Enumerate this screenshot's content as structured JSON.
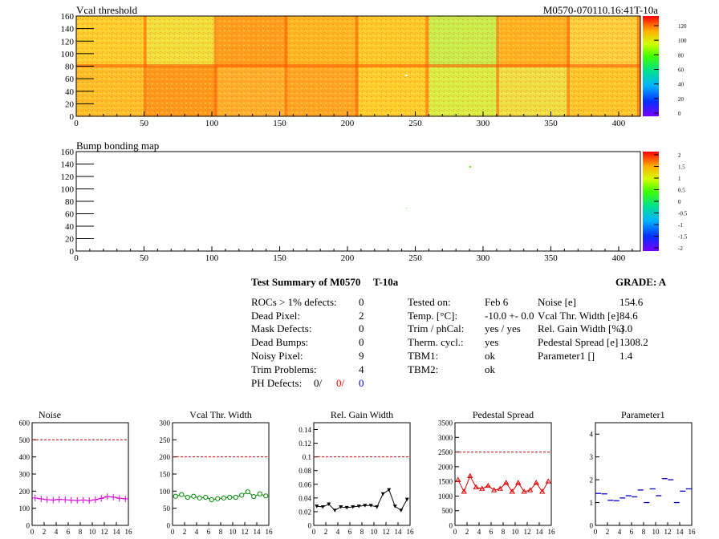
{
  "header": {
    "map1_title": "Vcal threshold",
    "module_id": "M0570-070110.16:41T-10a",
    "map2_title": "Bump bonding map"
  },
  "map_axes": {
    "x_ticks": [
      "0",
      "50",
      "100",
      "150",
      "200",
      "250",
      "300",
      "350",
      "400"
    ],
    "y_ticks": [
      "0",
      "20",
      "40",
      "60",
      "80",
      "100",
      "120",
      "140",
      "160"
    ],
    "palette1_ticks": [
      "120",
      "100",
      "80",
      "60",
      "40",
      "20",
      "0"
    ],
    "palette2_ticks": [
      "2",
      "1.5",
      "1",
      "0.5",
      "0",
      "-0.5",
      "-1",
      "-1.5",
      "-2"
    ]
  },
  "summary": {
    "title": "Test Summary of M0570",
    "temp_label": "T-10a",
    "grade": "GRADE:  A",
    "left": [
      {
        "label": "ROCs > 1% defects:",
        "value": "0"
      },
      {
        "label": "Dead Pixel:",
        "value": "2"
      },
      {
        "label": "Mask Defects:",
        "value": "0"
      },
      {
        "label": "Dead Bumps:",
        "value": "0"
      },
      {
        "label": "Noisy Pixel:",
        "value": "9"
      },
      {
        "label": "Trim Problems:",
        "value": "4"
      }
    ],
    "ph_defects_label": "PH Defects:",
    "ph_defects": [
      "0/",
      "0/",
      "0"
    ],
    "ph_colors": [
      "#000000",
      "#ff0000",
      "#0000cc"
    ],
    "middle": [
      {
        "label": "Tested on:",
        "value": "Feb 6"
      },
      {
        "label": "Temp. [°C]:",
        "value": "-10.0 +- 0.0"
      },
      {
        "label": "Trim / phCal:",
        "value": "yes / yes"
      },
      {
        "label": "Therm. cycl.:",
        "value": "yes"
      },
      {
        "label": "TBM1:",
        "value": "ok"
      },
      {
        "label": "TBM2:",
        "value": "ok"
      }
    ],
    "right": [
      {
        "label": "Noise [e]",
        "value": "154.6"
      },
      {
        "label": "Vcal Thr. Width [e]",
        "value": "84.6"
      },
      {
        "label": "Rel. Gain Width [%]",
        "value": "3.0"
      },
      {
        "label": "Pedestal Spread [e]",
        "value": "1308.2"
      },
      {
        "label": "Parameter1 []",
        "value": "1.4"
      }
    ]
  },
  "chart_data": [
    {
      "type": "line",
      "title": "Noise",
      "x": [
        0,
        1,
        2,
        3,
        4,
        5,
        6,
        7,
        8,
        9,
        10,
        11,
        12,
        13,
        14,
        15
      ],
      "values": [
        160,
        155,
        150,
        148,
        152,
        150,
        147,
        146,
        148,
        145,
        150,
        158,
        168,
        165,
        158,
        155
      ],
      "ylim": [
        0,
        600
      ],
      "yticks": [
        "0",
        "100",
        "200",
        "300",
        "400",
        "500",
        "600"
      ],
      "threshold": 500,
      "color": "#dd00dd"
    },
    {
      "type": "line",
      "title": "Vcal Thr. Width",
      "x": [
        0,
        1,
        2,
        3,
        4,
        5,
        6,
        7,
        8,
        9,
        10,
        11,
        12,
        13,
        14,
        15
      ],
      "values": [
        85,
        90,
        82,
        85,
        80,
        82,
        75,
        78,
        80,
        82,
        82,
        88,
        98,
        84,
        92,
        86
      ],
      "ylim": [
        0,
        300
      ],
      "yticks": [
        "0",
        "50",
        "100",
        "150",
        "200",
        "250",
        "300"
      ],
      "threshold": 200,
      "color": "#008800"
    },
    {
      "type": "line",
      "title": "Rel. Gain Width",
      "x": [
        0,
        1,
        2,
        3,
        4,
        5,
        6,
        7,
        8,
        9,
        10,
        11,
        12,
        13,
        14,
        15
      ],
      "values": [
        0.028,
        0.027,
        0.031,
        0.022,
        0.027,
        0.026,
        0.027,
        0.028,
        0.029,
        0.029,
        0.027,
        0.046,
        0.052,
        0.028,
        0.022,
        0.038
      ],
      "ylim": [
        0,
        0.15
      ],
      "yticks": [
        "0",
        "0.02",
        "0.04",
        "0.06",
        "0.08",
        "0.1",
        "0.12",
        "0.14"
      ],
      "ytick_values": [
        0,
        0.02,
        0.04,
        0.06,
        0.08,
        0.1,
        0.12,
        0.14
      ],
      "threshold": 0.1,
      "color": "#000000"
    },
    {
      "type": "line",
      "title": "Pedestal Spread",
      "x": [
        0,
        1,
        2,
        3,
        4,
        5,
        6,
        7,
        8,
        9,
        10,
        11,
        12,
        13,
        14,
        15
      ],
      "values": [
        1550,
        1150,
        1680,
        1300,
        1250,
        1350,
        1200,
        1250,
        1450,
        1150,
        1450,
        1150,
        1200,
        1450,
        1150,
        1500
      ],
      "ylim": [
        0,
        3500
      ],
      "yticks": [
        "0",
        "500",
        "1000",
        "1500",
        "2000",
        "2500",
        "3000",
        "3500"
      ],
      "threshold": 2500,
      "color": "#dd0000"
    },
    {
      "type": "scatter",
      "title": "Parameter1",
      "x": [
        0,
        1,
        2,
        3,
        4,
        5,
        6,
        7,
        8,
        9,
        10,
        11,
        12,
        13,
        14,
        15
      ],
      "values": [
        1.4,
        1.38,
        1.1,
        1.08,
        1.2,
        1.3,
        1.25,
        1.55,
        1.0,
        1.6,
        1.3,
        2.05,
        2.0,
        1.0,
        1.5,
        1.6
      ],
      "ylim": [
        0,
        4.5
      ],
      "yticks": [
        "0",
        "1",
        "2",
        "3",
        "4"
      ],
      "ytick_values": [
        0,
        1,
        2,
        3,
        4
      ],
      "threshold": null,
      "color": "#0000cc"
    }
  ],
  "mini_xticks": [
    "0",
    "2",
    "4",
    "6",
    "8",
    "10",
    "12",
    "14",
    "16"
  ]
}
